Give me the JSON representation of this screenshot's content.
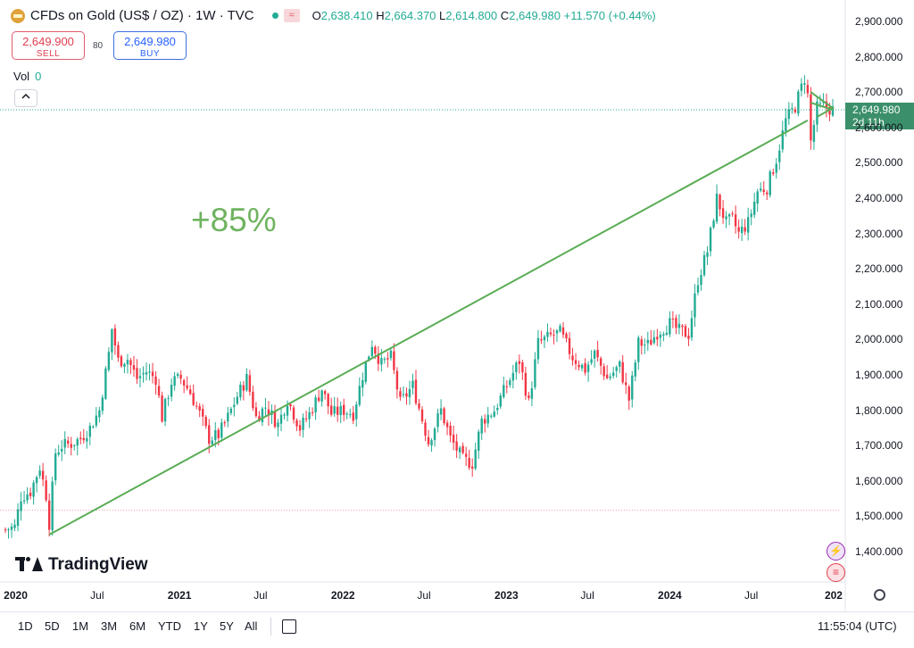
{
  "header": {
    "title": "CFDs on Gold (US$ / OZ) · 1W · TVC",
    "flag_glyph": "≈",
    "ohlc": {
      "o_label": "O",
      "o": "2,638.410",
      "h_label": "H",
      "h": "2,664.370",
      "l_label": "L",
      "l": "2,614.800",
      "c_label": "C",
      "c": "2,649.980",
      "change": "+11.570 (+0.44%)"
    }
  },
  "trade": {
    "sell_price": "2,649.900",
    "sell_label": "SELL",
    "spread": "80",
    "buy_price": "2,649.980",
    "buy_label": "BUY"
  },
  "volume": {
    "label": "Vol",
    "value": "0"
  },
  "price_label": {
    "price": "2,649.980",
    "countdown": "2d 11h"
  },
  "annotation": "+85%",
  "brand": "TradingView",
  "bottom_bar": {
    "ranges": [
      "1D",
      "5D",
      "1M",
      "3M",
      "6M",
      "YTD",
      "1Y",
      "5Y",
      "All"
    ],
    "time": "11:55:04 (UTC)"
  },
  "colors": {
    "up": "#22ab94",
    "down": "#f23645",
    "trendline": "#5aac55",
    "annotation": "#6fb35f"
  },
  "icons": [
    "gold-logo-icon",
    "chevron-up-icon",
    "calendar-range-icon",
    "lightning-icon",
    "us-flag-icon",
    "settings-gear-icon"
  ],
  "chart_data": {
    "type": "candlestick",
    "interval": "1W",
    "y_ticks": [
      "2,900.000",
      "2,800.000",
      "2,700.000",
      "2,600.000",
      "2,500.000",
      "2,400.000",
      "2,300.000",
      "2,200.000",
      "2,100.000",
      "2,000.000",
      "1,900.000",
      "1,800.000",
      "1,700.000",
      "1,600.000",
      "1,500.000",
      "1,400.000"
    ],
    "x_ticks": [
      {
        "label": "2020",
        "bold": true,
        "date": "2020-01-01"
      },
      {
        "label": "Jul",
        "bold": false,
        "date": "2020-07-01"
      },
      {
        "label": "2021",
        "bold": true,
        "date": "2021-01-01"
      },
      {
        "label": "Jul",
        "bold": false,
        "date": "2021-07-01"
      },
      {
        "label": "2022",
        "bold": true,
        "date": "2022-01-01"
      },
      {
        "label": "Jul",
        "bold": false,
        "date": "2022-07-01"
      },
      {
        "label": "2023",
        "bold": true,
        "date": "2023-01-01"
      },
      {
        "label": "Jul",
        "bold": false,
        "date": "2023-07-01"
      },
      {
        "label": "2024",
        "bold": true,
        "date": "2024-01-01"
      },
      {
        "label": "Jul",
        "bold": false,
        "date": "2024-07-01"
      },
      {
        "label": "202",
        "bold": true,
        "date": "2025-01-01"
      }
    ],
    "ylim": [
      1370,
      2950
    ],
    "xlim": [
      "2019-12-05",
      "2025-01-13"
    ],
    "last_price": 2649.98,
    "dotted_line_low": 1517,
    "trendlines": [
      {
        "x1": "2020-03-16",
        "y1": 1448,
        "x2": "2024-11-04",
        "y2": 2620
      },
      {
        "x1": "2024-11-11",
        "y1": 2670,
        "x2": "2024-12-30",
        "y2": 2650
      }
    ],
    "series_keypoints": [
      [
        "2019-12-09",
        1462
      ],
      [
        "2019-12-30",
        1470
      ],
      [
        "2020-01-13",
        1555
      ],
      [
        "2020-02-03",
        1570
      ],
      [
        "2020-02-24",
        1640
      ],
      [
        "2020-03-09",
        1560
      ],
      [
        "2020-03-16",
        1480
      ],
      [
        "2020-03-30",
        1680
      ],
      [
        "2020-04-13",
        1700
      ],
      [
        "2020-05-04",
        1705
      ],
      [
        "2020-05-25",
        1720
      ],
      [
        "2020-06-15",
        1750
      ],
      [
        "2020-07-06",
        1800
      ],
      [
        "2020-07-27",
        1960
      ],
      [
        "2020-08-03",
        2030
      ],
      [
        "2020-08-17",
        1940
      ],
      [
        "2020-09-07",
        1945
      ],
      [
        "2020-09-28",
        1890
      ],
      [
        "2020-10-19",
        1910
      ],
      [
        "2020-11-09",
        1890
      ],
      [
        "2020-11-23",
        1780
      ],
      [
        "2020-12-14",
        1880
      ],
      [
        "2021-01-04",
        1890
      ],
      [
        "2021-01-25",
        1850
      ],
      [
        "2021-02-15",
        1790
      ],
      [
        "2021-03-08",
        1720
      ],
      [
        "2021-03-29",
        1730
      ],
      [
        "2021-04-19",
        1780
      ],
      [
        "2021-05-10",
        1840
      ],
      [
        "2021-05-31",
        1890
      ],
      [
        "2021-06-21",
        1780
      ],
      [
        "2021-07-12",
        1810
      ],
      [
        "2021-08-09",
        1760
      ],
      [
        "2021-08-30",
        1830
      ],
      [
        "2021-09-27",
        1750
      ],
      [
        "2021-10-18",
        1790
      ],
      [
        "2021-11-15",
        1860
      ],
      [
        "2021-12-06",
        1790
      ],
      [
        "2022-01-03",
        1800
      ],
      [
        "2022-01-24",
        1790
      ],
      [
        "2022-02-14",
        1900
      ],
      [
        "2022-03-07",
        1990
      ],
      [
        "2022-03-28",
        1930
      ],
      [
        "2022-04-18",
        1950
      ],
      [
        "2022-05-09",
        1820
      ],
      [
        "2022-06-06",
        1870
      ],
      [
        "2022-07-11",
        1710
      ],
      [
        "2022-08-08",
        1800
      ],
      [
        "2022-08-29",
        1720
      ],
      [
        "2022-09-26",
        1660
      ],
      [
        "2022-10-17",
        1650
      ],
      [
        "2022-11-07",
        1770
      ],
      [
        "2022-12-05",
        1800
      ],
      [
        "2023-01-02",
        1870
      ],
      [
        "2023-01-30",
        1940
      ],
      [
        "2023-02-20",
        1820
      ],
      [
        "2023-03-13",
        1990
      ],
      [
        "2023-04-10",
        2010
      ],
      [
        "2023-05-01",
        2020
      ],
      [
        "2023-05-29",
        1950
      ],
      [
        "2023-06-26",
        1915
      ],
      [
        "2023-07-17",
        1960
      ],
      [
        "2023-08-14",
        1890
      ],
      [
        "2023-09-11",
        1925
      ],
      [
        "2023-10-02",
        1830
      ],
      [
        "2023-10-23",
        1990
      ],
      [
        "2023-11-13",
        1985
      ],
      [
        "2023-12-04",
        2020
      ],
      [
        "2024-01-01",
        2045
      ],
      [
        "2024-01-22",
        2025
      ],
      [
        "2024-02-12",
        2015
      ],
      [
        "2024-03-04",
        2170
      ],
      [
        "2024-03-25",
        2250
      ],
      [
        "2024-04-15",
        2400
      ],
      [
        "2024-05-06",
        2330
      ],
      [
        "2024-05-20",
        2340
      ],
      [
        "2024-06-03",
        2300
      ],
      [
        "2024-06-24",
        2330
      ],
      [
        "2024-07-15",
        2420
      ],
      [
        "2024-08-05",
        2430
      ],
      [
        "2024-08-26",
        2510
      ],
      [
        "2024-09-16",
        2620
      ],
      [
        "2024-10-07",
        2660
      ],
      [
        "2024-10-28",
        2740
      ],
      [
        "2024-11-04",
        2690
      ],
      [
        "2024-11-11",
        2560
      ],
      [
        "2024-11-25",
        2655
      ],
      [
        "2024-12-09",
        2660
      ],
      [
        "2024-12-30",
        2650
      ]
    ]
  }
}
